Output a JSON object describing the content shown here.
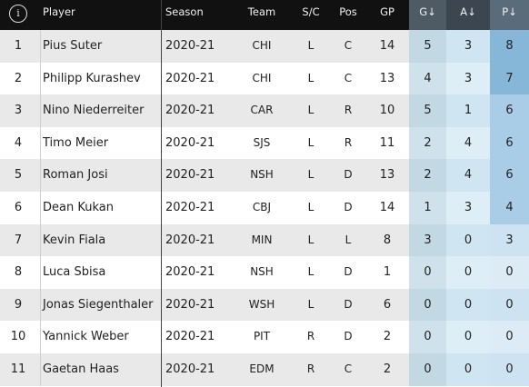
{
  "header": {
    "info_icon": "info-icon",
    "info_glyph": "i",
    "player": "Player",
    "season": "Season",
    "team": "Team",
    "sc": "S/C",
    "pos": "Pos",
    "gp": "GP",
    "g": "G↓",
    "a": "A↓",
    "p": "P↓"
  },
  "colors": {
    "header_bg": "#111111",
    "g_bg_odd": "#c2d9e4",
    "g_bg_even": "#cfe2ec",
    "a_bg_odd": "#cfe5f1",
    "a_bg_even": "#ddeef7",
    "p_high": "#86b6d8",
    "p_mid": "#a9cde6",
    "p_low_odd": "#cde3f1",
    "p_low_even": "#dcebf6"
  },
  "rows": [
    {
      "rank": "1",
      "player": "Pius Suter",
      "season": "2020-21",
      "team": "CHI",
      "sc": "L",
      "pos": "C",
      "gp": "14",
      "g": "5",
      "a": "3",
      "p": "8"
    },
    {
      "rank": "2",
      "player": "Philipp Kurashev",
      "season": "2020-21",
      "team": "CHI",
      "sc": "L",
      "pos": "C",
      "gp": "13",
      "g": "4",
      "a": "3",
      "p": "7"
    },
    {
      "rank": "3",
      "player": "Nino Niederreiter",
      "season": "2020-21",
      "team": "CAR",
      "sc": "L",
      "pos": "R",
      "gp": "10",
      "g": "5",
      "a": "1",
      "p": "6"
    },
    {
      "rank": "4",
      "player": "Timo Meier",
      "season": "2020-21",
      "team": "SJS",
      "sc": "L",
      "pos": "R",
      "gp": "11",
      "g": "2",
      "a": "4",
      "p": "6"
    },
    {
      "rank": "5",
      "player": "Roman Josi",
      "season": "2020-21",
      "team": "NSH",
      "sc": "L",
      "pos": "D",
      "gp": "13",
      "g": "2",
      "a": "4",
      "p": "6"
    },
    {
      "rank": "6",
      "player": "Dean Kukan",
      "season": "2020-21",
      "team": "CBJ",
      "sc": "L",
      "pos": "D",
      "gp": "14",
      "g": "1",
      "a": "3",
      "p": "4"
    },
    {
      "rank": "7",
      "player": "Kevin Fiala",
      "season": "2020-21",
      "team": "MIN",
      "sc": "L",
      "pos": "L",
      "gp": "8",
      "g": "3",
      "a": "0",
      "p": "3"
    },
    {
      "rank": "8",
      "player": "Luca Sbisa",
      "season": "2020-21",
      "team": "NSH",
      "sc": "L",
      "pos": "D",
      "gp": "1",
      "g": "0",
      "a": "0",
      "p": "0"
    },
    {
      "rank": "9",
      "player": "Jonas Siegenthaler",
      "season": "2020-21",
      "team": "WSH",
      "sc": "L",
      "pos": "D",
      "gp": "6",
      "g": "0",
      "a": "0",
      "p": "0"
    },
    {
      "rank": "10",
      "player": "Yannick Weber",
      "season": "2020-21",
      "team": "PIT",
      "sc": "R",
      "pos": "D",
      "gp": "2",
      "g": "0",
      "a": "0",
      "p": "0"
    },
    {
      "rank": "11",
      "player": "Gaetan Haas",
      "season": "2020-21",
      "team": "EDM",
      "sc": "R",
      "pos": "C",
      "gp": "2",
      "g": "0",
      "a": "0",
      "p": "0"
    }
  ]
}
